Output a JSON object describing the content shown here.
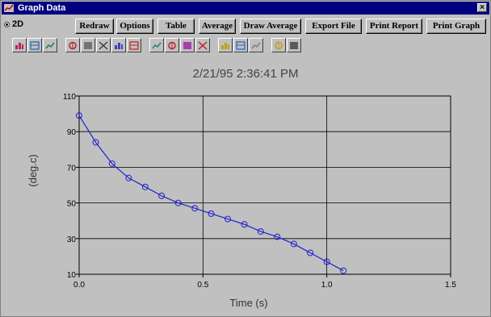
{
  "window": {
    "title": "Graph Data",
    "close_glyph": "×"
  },
  "mode": {
    "label": "2D"
  },
  "menu": [
    {
      "label": "Redraw",
      "name": "redraw-button"
    },
    {
      "label": "Options",
      "name": "options-button"
    },
    {
      "label": "Table",
      "name": "table-button"
    },
    {
      "label": "Average",
      "name": "average-button"
    },
    {
      "label": "Draw Average",
      "name": "draw-average-button"
    },
    {
      "label": "Export File",
      "name": "export-file-button"
    },
    {
      "label": "Print Report",
      "name": "print-report-button"
    },
    {
      "label": "Print Graph",
      "name": "print-graph-button"
    }
  ],
  "toolbar": [
    {
      "icon": "bar-chart-icon",
      "color": "#c02060"
    },
    {
      "icon": "3d-bar-chart-icon",
      "color": "#2060c0"
    },
    {
      "icon": "stacked-bar-icon",
      "color": "#208040"
    },
    {
      "icon": "grid-table-icon",
      "color": "#c02020"
    },
    {
      "icon": "text-label-icon",
      "color": "#606060"
    },
    {
      "icon": "data-list-icon",
      "color": "#404040"
    },
    {
      "icon": "pattern-icon",
      "color": "#4040c0"
    },
    {
      "icon": "axis-scale-icon",
      "color": "#c02020"
    },
    {
      "icon": "frame-icon",
      "color": "#208080"
    },
    {
      "icon": "curve-fit-icon",
      "color": "#c02020"
    },
    {
      "icon": "color-palette-icon",
      "color": "#a020a0"
    },
    {
      "icon": "crosshair-icon",
      "color": "#c02020"
    },
    {
      "icon": "marker-icon",
      "color": "#c0a000"
    },
    {
      "icon": "chart-gallery-icon",
      "color": "#2060c0"
    },
    {
      "icon": "edit-pencil-icon",
      "color": "#808080"
    },
    {
      "icon": "help-icon",
      "color": "#c0a000"
    },
    {
      "icon": "zoom-icon",
      "color": "#404040"
    }
  ],
  "chart_data": {
    "type": "line",
    "title": "2/21/95 2:36:41 PM",
    "xlabel": "Time (s)",
    "ylabel": "(deg.c)",
    "xlim": [
      0.0,
      1.5
    ],
    "ylim": [
      10,
      110
    ],
    "x_ticks": [
      "0.0",
      "0.5",
      "1.0",
      "1.5"
    ],
    "y_ticks": [
      "10",
      "30",
      "50",
      "70",
      "90",
      "110"
    ],
    "grid": true,
    "line_color": "#2020d0",
    "x": [
      0.0,
      0.067,
      0.133,
      0.2,
      0.267,
      0.333,
      0.4,
      0.467,
      0.533,
      0.6,
      0.667,
      0.733,
      0.8,
      0.867,
      0.933,
      1.0,
      1.067
    ],
    "y": [
      99,
      84,
      72,
      64,
      59,
      54,
      50,
      47,
      44,
      41,
      38,
      34,
      31,
      27,
      22,
      17,
      12
    ]
  }
}
